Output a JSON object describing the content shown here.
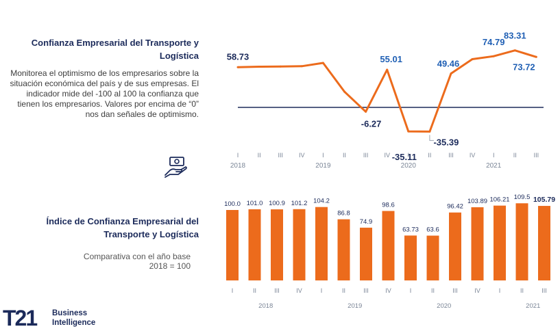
{
  "panel_top": {
    "title": "Confianza Empresarial del Transporte y Logística",
    "description": "Monitorea el optimismo de los empresarios sobre la situación económica del país y de sus empresas. El indicador mide del -100 al 100 la confianza que tienen los empresarios. Valores por encima de “0” nos dan señales de optimismo."
  },
  "panel_bottom": {
    "title": "Índice de Confianza Empresarial del Transporte y Logística",
    "subtitle": "Comparativa con el año base\n2018 = 100"
  },
  "logo": {
    "mark": "T21",
    "line1": "Business",
    "line2": "Intelligence"
  },
  "icons": {
    "money": "money-hand-icon"
  },
  "colors": {
    "orange": "#ec6b1c",
    "navy": "#1b2a5a",
    "blue_label": "#1f5fb4",
    "axis_gray": "#7a8596"
  },
  "chart_data": [
    {
      "type": "line",
      "categories": [
        "I",
        "II",
        "III",
        "IV",
        "I",
        "II",
        "III",
        "IV",
        "I",
        "II",
        "III",
        "IV",
        "I",
        "II",
        "III"
      ],
      "years": [
        "2018",
        "2019",
        "2020",
        "2021"
      ],
      "values": [
        58.73,
        59.5,
        59.8,
        60.2,
        65,
        23,
        -6.27,
        55.01,
        -35.11,
        -35.39,
        49.46,
        70.5,
        74.79,
        83.31,
        73.72
      ],
      "data_labels": [
        {
          "index": 0,
          "text": "58.73",
          "color": "navy"
        },
        {
          "index": 6,
          "text": "-6.27",
          "color": "navy"
        },
        {
          "index": 7,
          "text": "55.01",
          "color": "blue"
        },
        {
          "index": 8,
          "text": "-35.11",
          "color": "navy"
        },
        {
          "index": 9,
          "text": "-35.39",
          "color": "navy"
        },
        {
          "index": 10,
          "text": "49.46",
          "color": "blue"
        },
        {
          "index": 12,
          "text": "74.79",
          "color": "blue"
        },
        {
          "index": 13,
          "text": "83.31",
          "color": "blue"
        },
        {
          "index": 14,
          "text": "73.72",
          "color": "blue"
        }
      ],
      "reference_line": 0,
      "ylim": [
        -50,
        100
      ]
    },
    {
      "type": "bar",
      "categories": [
        "I",
        "II",
        "III",
        "IV",
        "I",
        "II",
        "III",
        "IV",
        "I",
        "II",
        "III",
        "IV",
        "I",
        "II",
        "III"
      ],
      "years": [
        "2018",
        "2019",
        "2020",
        "2021"
      ],
      "values": [
        100.0,
        101.0,
        100.9,
        101.2,
        104.2,
        86.8,
        74.9,
        98.6,
        63.73,
        63.6,
        96.42,
        103.89,
        106.21,
        109.5,
        105.79
      ],
      "value_labels": [
        "100.0",
        "101.0",
        "100.9",
        "101.2",
        "104.2",
        "86.8",
        "74.9",
        "98.6",
        "63.73",
        "63.6",
        "96.42",
        "103.89",
        "106.21",
        "109.5",
        "105.79"
      ],
      "bold_last_label": true,
      "ylim": [
        0,
        115
      ]
    }
  ]
}
